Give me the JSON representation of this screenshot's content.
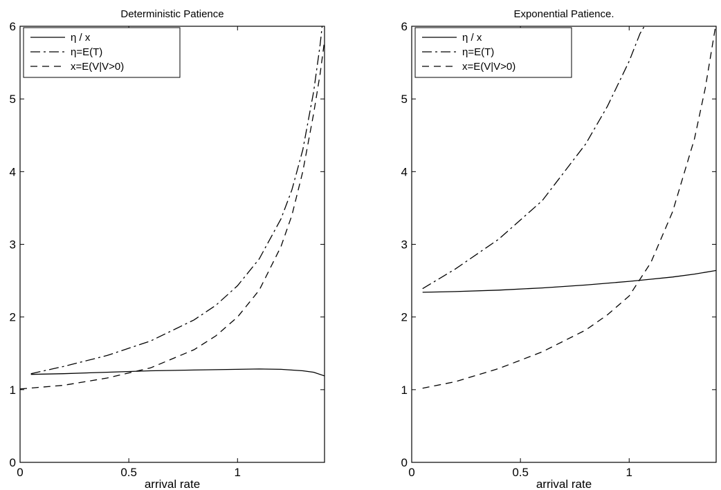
{
  "figure": {
    "legend": {
      "placement": "top-left",
      "series_style": [
        "solid",
        "dashdot",
        "dashed"
      ]
    }
  },
  "chart_data": [
    {
      "type": "line",
      "title": "Deterministic Patience",
      "xlabel": "arrival rate",
      "ylabel": "",
      "xlim": [
        0,
        1.4
      ],
      "ylim": [
        0,
        6
      ],
      "xticks": [
        {
          "v": 0,
          "label": "0"
        },
        {
          "v": 0.5,
          "label": "0.5"
        },
        {
          "v": 1,
          "label": "1"
        }
      ],
      "yticks": [
        {
          "v": 0,
          "label": "0"
        },
        {
          "v": 1,
          "label": "1"
        },
        {
          "v": 2,
          "label": "2"
        },
        {
          "v": 3,
          "label": "3"
        },
        {
          "v": 4,
          "label": "4"
        },
        {
          "v": 5,
          "label": "5"
        },
        {
          "v": 6,
          "label": "6"
        }
      ],
      "grid": false,
      "legend": "top-left",
      "series": [
        {
          "name": "η / x",
          "x": [
            0.05,
            0.2,
            0.4,
            0.6,
            0.8,
            1.0,
            1.1,
            1.2,
            1.3,
            1.35,
            1.4
          ],
          "y": [
            1.21,
            1.22,
            1.24,
            1.26,
            1.27,
            1.28,
            1.285,
            1.28,
            1.26,
            1.24,
            1.19
          ]
        },
        {
          "name": "η=E(T)",
          "x": [
            0.05,
            0.2,
            0.4,
            0.6,
            0.8,
            0.9,
            1.0,
            1.1,
            1.2,
            1.25,
            1.3,
            1.35,
            1.38,
            1.4
          ],
          "y": [
            1.22,
            1.32,
            1.47,
            1.67,
            1.96,
            2.16,
            2.43,
            2.8,
            3.35,
            3.75,
            4.3,
            5.1,
            5.75,
            6.3
          ]
        },
        {
          "name": "x=E(V|V>0)",
          "x": [
            0.0,
            0.2,
            0.4,
            0.6,
            0.8,
            0.9,
            1.0,
            1.1,
            1.2,
            1.25,
            1.3,
            1.35,
            1.38,
            1.4
          ],
          "y": [
            1.01,
            1.06,
            1.16,
            1.3,
            1.55,
            1.74,
            2.0,
            2.37,
            2.97,
            3.4,
            4.0,
            4.8,
            5.35,
            5.8
          ]
        }
      ]
    },
    {
      "type": "line",
      "title": "Exponential Patience.",
      "xlabel": "arrival rate",
      "ylabel": "",
      "xlim": [
        0,
        1.4
      ],
      "ylim": [
        0,
        6
      ],
      "xticks": [
        {
          "v": 0,
          "label": "0"
        },
        {
          "v": 0.5,
          "label": "0.5"
        },
        {
          "v": 1,
          "label": "1"
        }
      ],
      "yticks": [
        {
          "v": 0,
          "label": "0"
        },
        {
          "v": 1,
          "label": "1"
        },
        {
          "v": 2,
          "label": "2"
        },
        {
          "v": 3,
          "label": "3"
        },
        {
          "v": 4,
          "label": "4"
        },
        {
          "v": 5,
          "label": "5"
        },
        {
          "v": 6,
          "label": "6"
        }
      ],
      "grid": false,
      "legend": "top-left",
      "series": [
        {
          "name": "η / x",
          "x": [
            0.05,
            0.2,
            0.4,
            0.6,
            0.8,
            1.0,
            1.1,
            1.2,
            1.3,
            1.4
          ],
          "y": [
            2.34,
            2.35,
            2.37,
            2.4,
            2.44,
            2.49,
            2.52,
            2.55,
            2.59,
            2.64
          ]
        },
        {
          "name": "η=E(T)",
          "x": [
            0.05,
            0.2,
            0.4,
            0.6,
            0.8,
            0.9,
            1.0,
            1.05,
            1.08
          ],
          "y": [
            2.39,
            2.66,
            3.07,
            3.6,
            4.38,
            4.9,
            5.52,
            5.9,
            6.05
          ]
        },
        {
          "name": "x=E(V|V>0)",
          "x": [
            0.05,
            0.2,
            0.4,
            0.6,
            0.8,
            0.9,
            1.0,
            1.1,
            1.2,
            1.3,
            1.35,
            1.4
          ],
          "y": [
            1.02,
            1.11,
            1.29,
            1.52,
            1.82,
            2.03,
            2.29,
            2.75,
            3.45,
            4.45,
            5.15,
            6.05
          ]
        }
      ]
    }
  ]
}
